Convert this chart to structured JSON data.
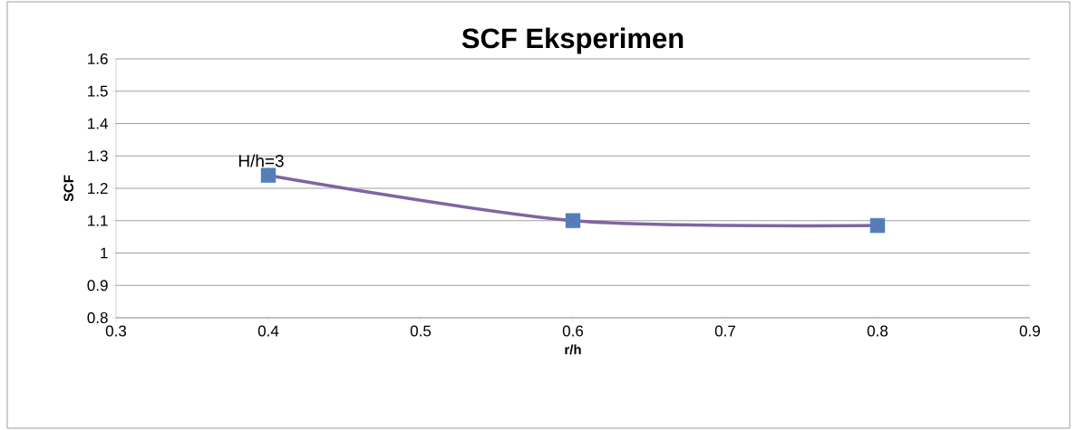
{
  "chart_data": {
    "type": "line",
    "title": "SCF Eksperimen",
    "xlabel": "r/h",
    "ylabel": "SCF",
    "x": [
      0.4,
      0.6,
      0.8
    ],
    "series": [
      {
        "type": "scatter",
        "color": "#4f81bd",
        "marker": "square",
        "values": [
          1.24,
          1.1,
          1.085
        ]
      },
      {
        "color": "#8064a2",
        "marker": "cross",
        "values": [
          1.24,
          1.1,
          1.085
        ]
      }
    ],
    "annotations": [
      {
        "text": "H/h=3",
        "x": 0.4,
        "y": 1.24
      }
    ],
    "xlim": [
      0.3,
      0.9
    ],
    "xticks": [
      0.3,
      0.4,
      0.5,
      0.6,
      0.7,
      0.8,
      0.9
    ],
    "ylim": [
      0.8,
      1.6
    ],
    "yticks": [
      0.8,
      0.9,
      1,
      1.1,
      1.2,
      1.3,
      1.4,
      1.5,
      1.6
    ],
    "grid": "y"
  }
}
